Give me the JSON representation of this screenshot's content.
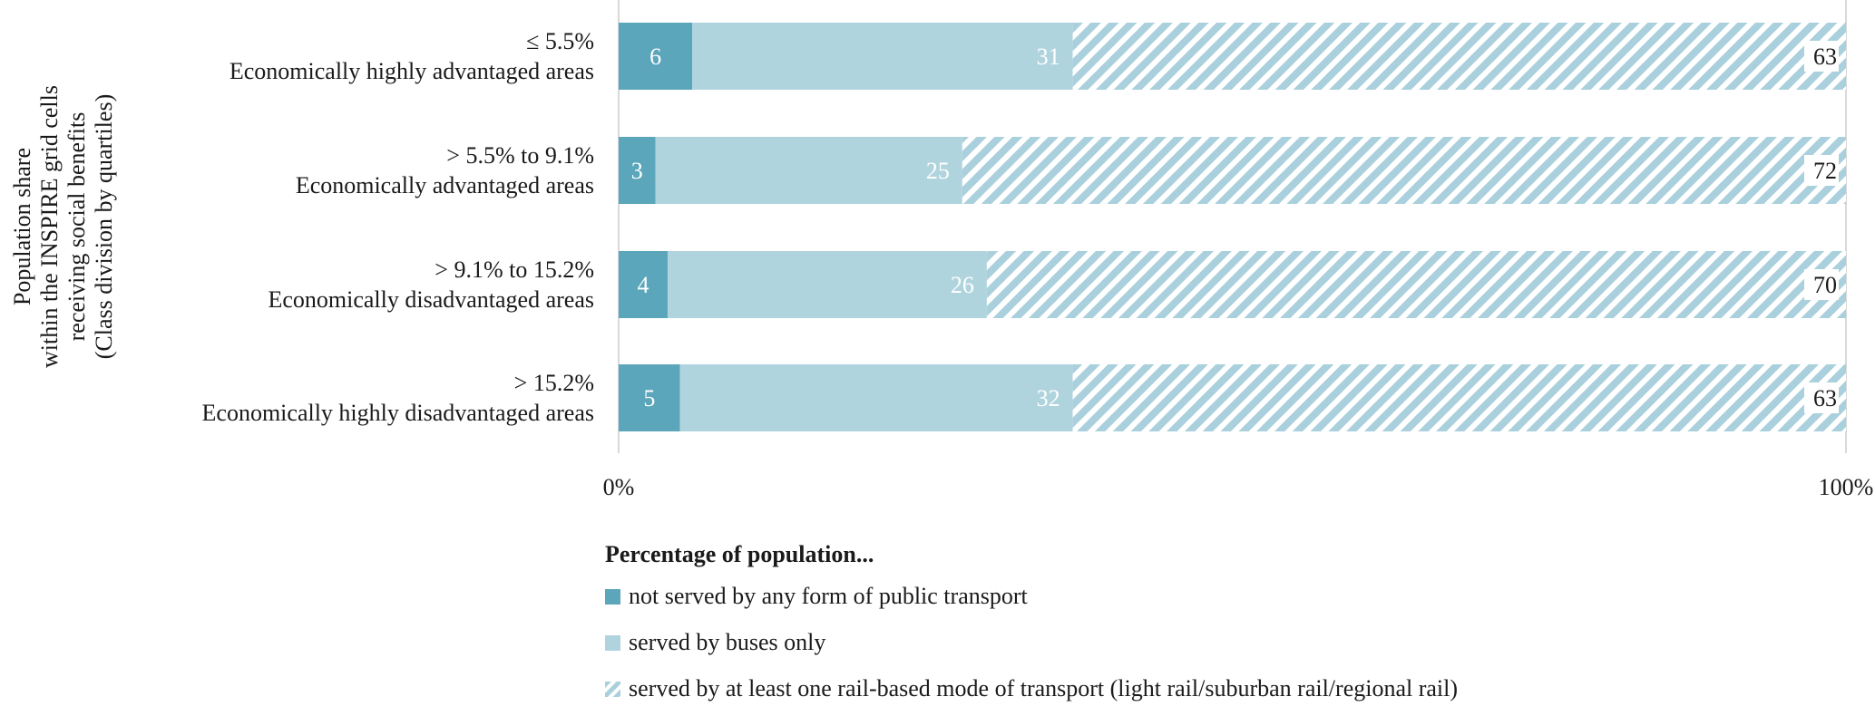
{
  "chart_data": {
    "type": "bar",
    "orientation": "horizontal",
    "stacked": true,
    "ylabel_lines": [
      "Population share",
      "within the INSPIRE grid cells",
      "receiving social benefits",
      "(Class division by quartiles)"
    ],
    "xlim": [
      0,
      100
    ],
    "x_ticks": [
      "0%",
      "100%"
    ],
    "categories": [
      {
        "range": "≤ 5.5%",
        "label": "Economically highly advantaged areas"
      },
      {
        "range": "> 5.5% to 9.1%",
        "label": "Economically advantaged areas"
      },
      {
        "range": "> 9.1% to 15.2%",
        "label": "Economically disadvantaged areas"
      },
      {
        "range": "> 15.2%",
        "label": "Economically highly disadvantaged areas"
      }
    ],
    "series": [
      {
        "name": "not served by any form of public transport",
        "color": "#5ba6ba",
        "pattern": "solid",
        "values": [
          6,
          3,
          4,
          5
        ]
      },
      {
        "name": "served by buses only",
        "color": "#b0d4de",
        "pattern": "solid",
        "values": [
          31,
          25,
          26,
          32
        ]
      },
      {
        "name": "served by at least one rail-based mode of transport (light rail/suburban rail/regional rail)",
        "color": "#a9d0dc",
        "pattern": "hatched",
        "values": [
          63,
          72,
          70,
          63
        ]
      }
    ],
    "legend_title": "Percentage of population...",
    "legend_position": "bottom",
    "grid": false
  }
}
